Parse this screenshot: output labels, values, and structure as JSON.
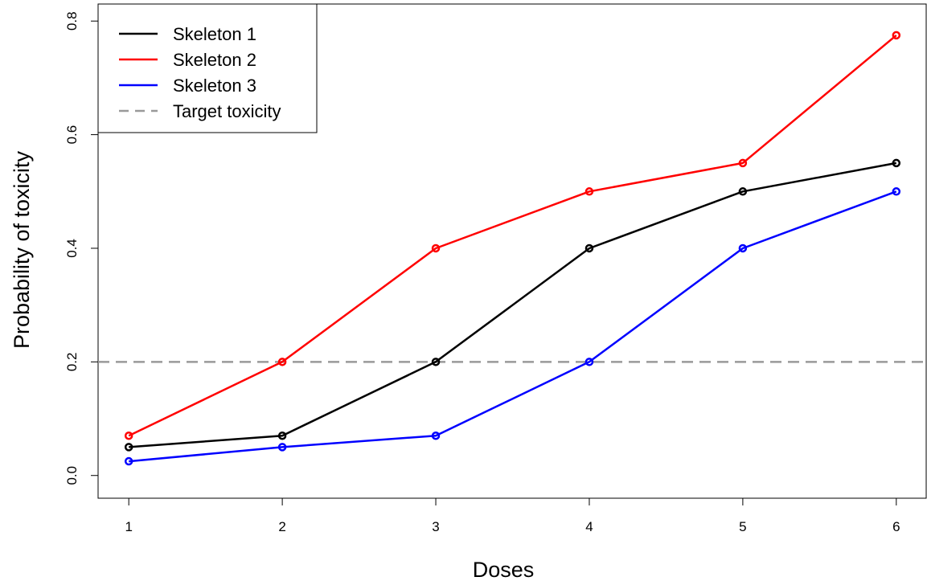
{
  "chart_data": {
    "type": "line",
    "title": "",
    "xlabel": "Doses",
    "ylabel": "Probability of toxicity",
    "x": [
      1,
      2,
      3,
      4,
      5,
      6
    ],
    "x_ticks": [
      "1",
      "2",
      "3",
      "4",
      "5",
      "6"
    ],
    "y_ticks": [
      "0.0",
      "0.2",
      "0.4",
      "0.6",
      "0.8"
    ],
    "xlim": [
      0.8,
      6.2
    ],
    "ylim": [
      -0.04,
      0.83
    ],
    "grid": false,
    "legend_position": "top-left",
    "series": [
      {
        "name": "Skeleton 1",
        "color": "#000000",
        "values": [
          0.05,
          0.07,
          0.2,
          0.4,
          0.5,
          0.55
        ]
      },
      {
        "name": "Skeleton 2",
        "color": "#ff0000",
        "values": [
          0.07,
          0.2,
          0.4,
          0.5,
          0.55,
          0.775
        ]
      },
      {
        "name": "Skeleton 3",
        "color": "#0000ff",
        "values": [
          0.025,
          0.05,
          0.07,
          0.2,
          0.4,
          0.5
        ]
      }
    ],
    "reference_line": {
      "name": "Target toxicity",
      "y": 0.2,
      "color": "#999999",
      "style": "dashed"
    }
  }
}
